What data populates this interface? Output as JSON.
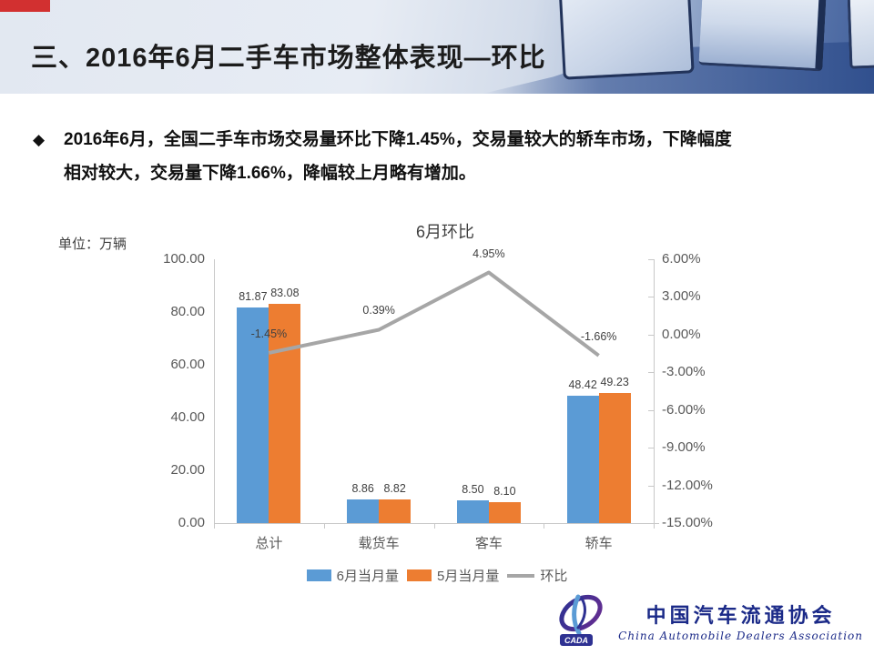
{
  "header": {
    "title": "三、2016年6月二手车市场整体表现—环比"
  },
  "bullet": {
    "marker": "◆",
    "lines": [
      "2016年6月，全国二手车市场交易量环比下降1.45%，交易量较大的轿车市场，下降幅度",
      "相对较大，交易量下降1.66%，降幅较上月略有增加。"
    ]
  },
  "chart_data": {
    "type": "bar+line combo",
    "title": "6月环比",
    "unit_annotation": "单位：万辆",
    "categories": [
      "总计",
      "载货车",
      "客车",
      "轿车"
    ],
    "series": [
      {
        "name": "6月当月量",
        "type": "bar",
        "axis": "left",
        "color": "#5B9BD5",
        "values": [
          81.87,
          8.86,
          8.5,
          48.42
        ],
        "labels": [
          "81.87",
          "8.86",
          "8.50",
          "48.42"
        ]
      },
      {
        "name": "5月当月量",
        "type": "bar",
        "axis": "left",
        "color": "#ED7D31",
        "values": [
          83.08,
          8.82,
          8.1,
          49.23
        ],
        "labels": [
          "83.08",
          "8.82",
          "8.10",
          "49.23"
        ]
      },
      {
        "name": "环比",
        "type": "line",
        "axis": "right",
        "color": "#A6A6A6",
        "values": [
          -1.45,
          0.39,
          4.95,
          -1.66
        ],
        "labels": [
          "-1.45%",
          "0.39%",
          "4.95%",
          "-1.66%"
        ]
      }
    ],
    "left_axis": {
      "min": 0,
      "max": 100,
      "ticks": [
        "100.00",
        "80.00",
        "60.00",
        "40.00",
        "20.00",
        "0.00"
      ]
    },
    "right_axis": {
      "min": -15,
      "max": 6,
      "ticks": [
        "6.00%",
        "3.00%",
        "0.00%",
        "-3.00%",
        "-6.00%",
        "-9.00%",
        "-12.00%",
        "-15.00%"
      ]
    },
    "legend_position": "bottom",
    "grid": false
  },
  "logo": {
    "badge": "CADA",
    "cn": "中国汽车流通协会",
    "en": "China Automobile Dealers Association"
  }
}
